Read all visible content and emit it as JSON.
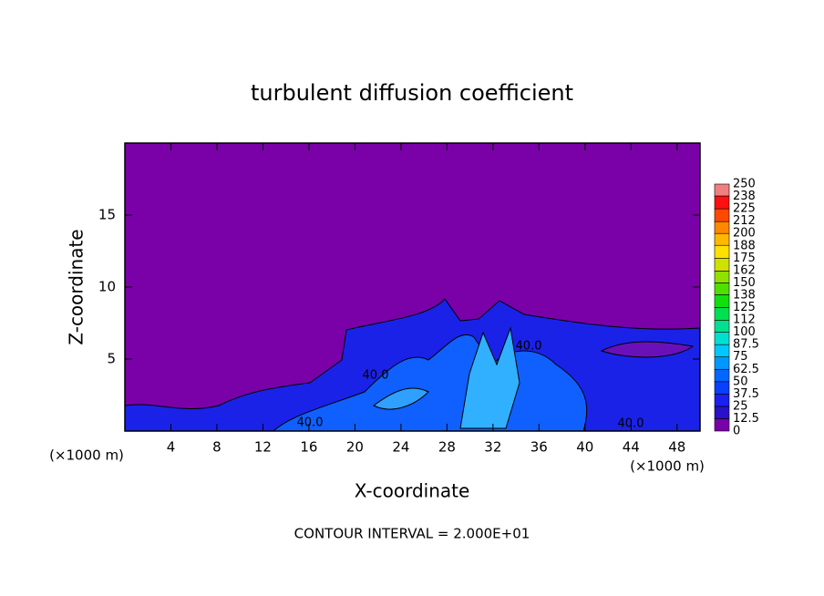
{
  "chart_data": {
    "type": "contour",
    "title": "turbulent diffusion coefficient",
    "xlabel": "X-coordinate",
    "ylabel": "Z-coordinate",
    "x_unit": "(×1000 m)",
    "y_unit": "(×1000 m)",
    "annotation": "CONTOUR INTERVAL = 2.000E+01",
    "xlim": [
      0,
      50
    ],
    "ylim": [
      0,
      20
    ],
    "xticks": [
      4,
      8,
      12,
      16,
      20,
      24,
      28,
      32,
      36,
      40,
      44,
      48
    ],
    "yticks": [
      5,
      10,
      15
    ],
    "contour_labels": [
      "40.0",
      "40.0",
      "40.0",
      "40.0"
    ],
    "colorbar": {
      "ticks": [
        0,
        12.5,
        25,
        37.5,
        50,
        62.5,
        75,
        87.5,
        100,
        112,
        125,
        138,
        150,
        162,
        175,
        188,
        200,
        212,
        225,
        238,
        250
      ],
      "colors": [
        "#7a00a8",
        "#2a10c8",
        "#1a20f0",
        "#0840ff",
        "#0068ff",
        "#0098ff",
        "#00c8ff",
        "#00e0d0",
        "#00e090",
        "#00e050",
        "#10e010",
        "#50e000",
        "#90e000",
        "#d0e000",
        "#ffe000",
        "#ffb800",
        "#ff8800",
        "#ff4800",
        "#ff1010",
        "#f08080"
      ]
    }
  }
}
